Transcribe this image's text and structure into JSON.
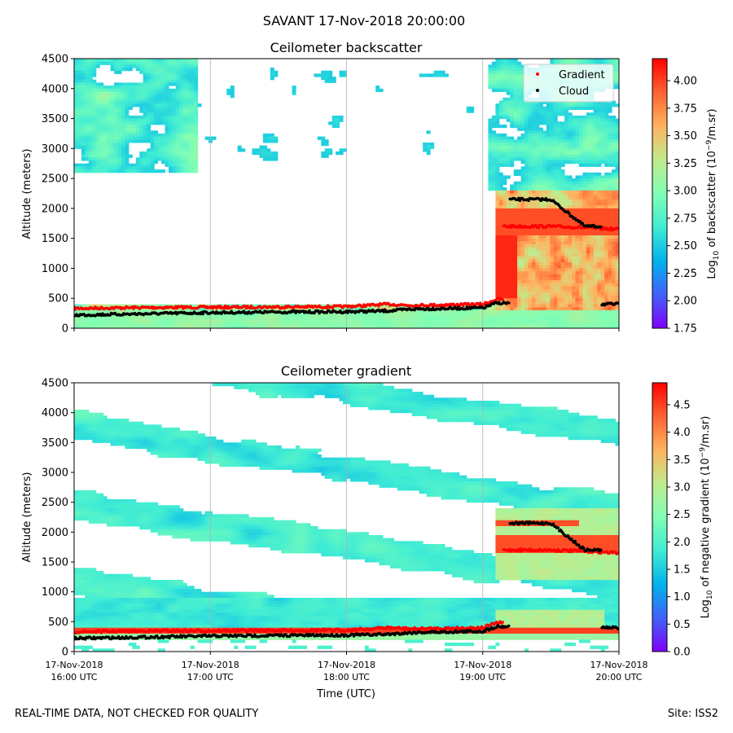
{
  "suptitle": "SAVANT 17-Nov-2018 20:00:00",
  "footer": {
    "left": "REAL-TIME DATA, NOT CHECKED FOR QUALITY",
    "right": "Site: ISS2"
  },
  "colors": {
    "colormap": [
      "#8000ff",
      "#4062fa",
      "#01b3eb",
      "#40ecd4",
      "#80feb4",
      "#c0eb8d",
      "#ffb360",
      "#ff6230",
      "#ff0000"
    ],
    "gradient_marker": "#ff0000",
    "cloud_marker": "#000000",
    "grid": "#b0b0b0"
  },
  "chart_data": [
    {
      "type": "heatmap",
      "title": "Ceilometer backscatter",
      "xlabel": "",
      "ylabel": "Altitude (meters)",
      "ylim": [
        0,
        4500
      ],
      "yticks": [
        "0",
        "500",
        "1000",
        "1500",
        "2000",
        "2500",
        "3000",
        "3500",
        "4000",
        "4500"
      ],
      "xlim_hours_utc": [
        16,
        20
      ],
      "xticks_hours": [
        16,
        17,
        18,
        19,
        20
      ],
      "xtick_labels_visible": false,
      "colorbar": {
        "label_prefix": "Log",
        "label_sub": "10",
        "label_mid": " of backscatter (10",
        "label_sup": "−9",
        "label_suffix": "/m.sr)",
        "range": [
          1.75,
          4.2
        ],
        "ticks": [
          "1.75",
          "2.00",
          "2.25",
          "2.50",
          "2.75",
          "3.00",
          "3.25",
          "3.50",
          "3.75",
          "4.00"
        ]
      },
      "legend": {
        "location": "top-right",
        "entries": [
          {
            "label": "Gradient",
            "marker": "gradient_marker"
          },
          {
            "label": "Cloud",
            "marker": "cloud_marker"
          }
        ]
      },
      "series": [
        {
          "name": "Gradient",
          "time_h": [
            16.0,
            16.5,
            17.0,
            17.5,
            18.0,
            18.3,
            18.5,
            18.75,
            19.0,
            19.1,
            19.2,
            19.5,
            19.75,
            20.0
          ],
          "altitude_m": [
            330,
            345,
            350,
            355,
            360,
            400,
            380,
            390,
            400,
            480,
            1700,
            1700,
            1680,
            1650
          ]
        },
        {
          "name": "Cloud",
          "time_h": [
            16.0,
            16.5,
            17.0,
            17.5,
            18.0,
            18.3,
            18.5,
            18.75,
            19.0,
            19.1,
            19.3,
            19.5,
            19.75,
            20.0
          ],
          "altitude_m": [
            220,
            240,
            260,
            270,
            275,
            290,
            320,
            330,
            340,
            420,
            2150,
            2150,
            1700,
            400
          ]
        }
      ]
    },
    {
      "type": "heatmap",
      "title": "Ceilometer gradient",
      "xlabel": "Time (UTC)",
      "ylabel": "Altitude (meters)",
      "ylim": [
        0,
        4500
      ],
      "yticks": [
        "0",
        "500",
        "1000",
        "1500",
        "2000",
        "2500",
        "3000",
        "3500",
        "4000",
        "4500"
      ],
      "xlim_hours_utc": [
        16,
        20
      ],
      "xticks_hours": [
        16,
        17,
        18,
        19,
        20
      ],
      "xtick_labels": [
        {
          "date": "17-Nov-2018",
          "time": "16:00 UTC"
        },
        {
          "date": "17-Nov-2018",
          "time": "17:00 UTC"
        },
        {
          "date": "17-Nov-2018",
          "time": "18:00 UTC"
        },
        {
          "date": "17-Nov-2018",
          "time": "19:00 UTC"
        },
        {
          "date": "17-Nov-2018",
          "time": "20:00 UTC"
        }
      ],
      "colorbar": {
        "label_prefix": "Log",
        "label_sub": "10",
        "label_mid": " of negative gradient (10",
        "label_sup": "−9",
        "label_suffix": "/m.sr)",
        "range": [
          0.0,
          4.9
        ],
        "ticks": [
          "0.0",
          "0.5",
          "1.0",
          "1.5",
          "2.0",
          "2.5",
          "3.0",
          "3.5",
          "4.0",
          "4.5"
        ]
      },
      "series": [
        {
          "name": "Gradient",
          "time_h": [
            16.0,
            16.5,
            17.0,
            17.5,
            18.0,
            18.3,
            18.5,
            18.75,
            19.0,
            19.1,
            19.2,
            19.5,
            19.75,
            20.0
          ],
          "altitude_m": [
            330,
            345,
            350,
            355,
            360,
            400,
            380,
            390,
            400,
            480,
            1700,
            1700,
            1680,
            1650
          ]
        },
        {
          "name": "Cloud",
          "time_h": [
            16.0,
            16.5,
            17.0,
            17.5,
            18.0,
            18.3,
            18.5,
            18.75,
            19.0,
            19.1,
            19.3,
            19.5,
            19.75,
            20.0
          ],
          "altitude_m": [
            220,
            240,
            260,
            270,
            275,
            290,
            320,
            330,
            340,
            420,
            2150,
            2150,
            1700,
            400
          ]
        }
      ]
    }
  ]
}
